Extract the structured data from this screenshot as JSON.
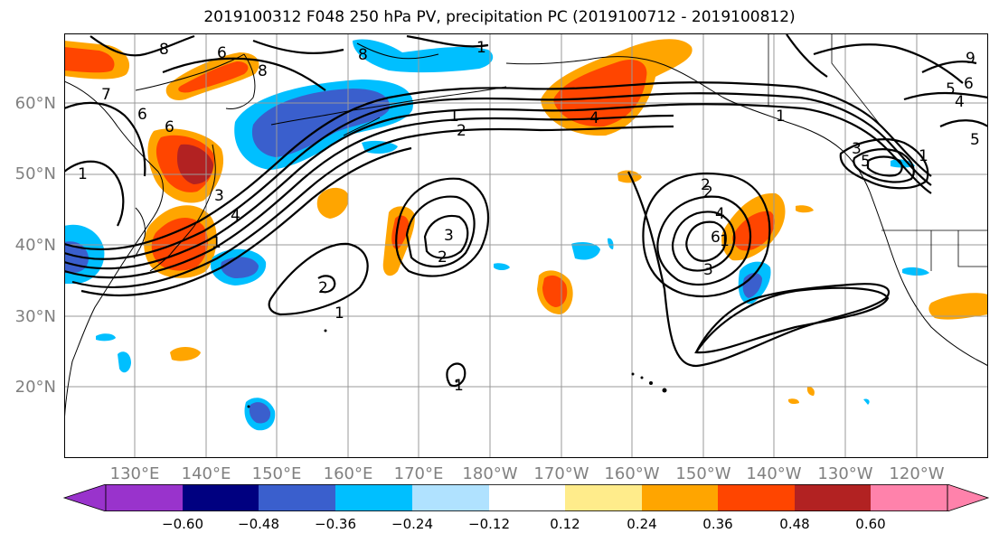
{
  "title": "2019100312 F048 250 hPa PV, precipitation PC (2019100712 - 2019100812)",
  "lat_labels": [
    "60°N",
    "50°N",
    "40°N",
    "30°N",
    "20°N"
  ],
  "lon_labels": [
    "130°E",
    "140°E",
    "150°E",
    "160°E",
    "170°E",
    "180°W",
    "170°W",
    "160°W",
    "150°W",
    "140°W",
    "130°W",
    "120°W"
  ],
  "contour_labels": [
    "8",
    "6",
    "8",
    "8",
    "1",
    "6",
    "7",
    "6",
    "1",
    "9",
    "5",
    "6",
    "4",
    "5",
    "1",
    "4",
    "1",
    "2",
    "3",
    "4",
    "1",
    "3",
    "2",
    "2",
    "1",
    "2",
    "1",
    "1",
    "3",
    "2",
    "4",
    "6",
    "5",
    "3",
    "1"
  ],
  "colorbar": {
    "ticks": [
      "−0.60",
      "−0.48",
      "−0.36",
      "−0.24",
      "−0.12",
      "0.12",
      "0.24",
      "0.36",
      "0.48",
      "0.60"
    ],
    "colors": [
      "#9933cc",
      "#000080",
      "#3a5fcd",
      "#00bfff",
      "#b0e2ff",
      "#ffffff",
      "#ffec8b",
      "#ffa500",
      "#ff4500",
      "#b22222",
      "#ff82ab"
    ]
  },
  "palette": {
    "grid": "#999999",
    "contour": "#000000",
    "coast": "#000000",
    "label": "#808080"
  }
}
